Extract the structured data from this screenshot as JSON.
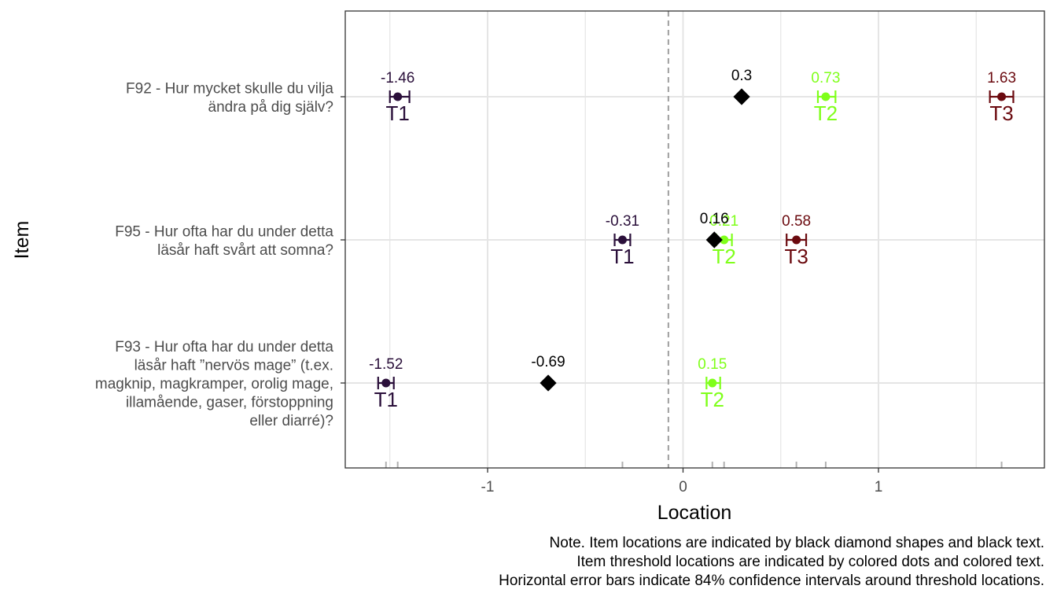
{
  "chart_data": {
    "type": "scatter",
    "xlabel": "Location",
    "ylabel": "Item",
    "xlim": [
      -1.74,
      1.85
    ],
    "x_ticks": [
      -1,
      0,
      1
    ],
    "x_tick_labels": [
      "-1",
      "0",
      "1"
    ],
    "reference_line_x": -0.075,
    "grid": true,
    "colors": {
      "item": "#000000",
      "T1": "#2A0F3A",
      "T2": "#7FFF1A",
      "T3": "#6B0A0F",
      "refline": "#9E9E9E",
      "grid": "#E5E5E5",
      "axis_text": "#4D4D4D"
    },
    "items": [
      {
        "label_lines": [
          "F92 - Hur mycket skulle du vilja",
          "ändra på dig själv?"
        ],
        "location": 0.3,
        "location_label": "0.3",
        "thresholds": [
          {
            "name": "T1",
            "value": -1.46,
            "label": "-1.46",
            "ci": [
              -1.5,
              -1.4
            ]
          },
          {
            "name": "T2",
            "value": 0.73,
            "label": "0.73",
            "ci": [
              0.69,
              0.78
            ]
          },
          {
            "name": "T3",
            "value": 1.63,
            "label": "1.63",
            "ci": [
              1.57,
              1.69
            ]
          }
        ]
      },
      {
        "label_lines": [
          "F95 - Hur ofta har du under detta",
          "läsår haft svårt att somna?"
        ],
        "location": 0.16,
        "location_label": "0.16",
        "thresholds": [
          {
            "name": "T1",
            "value": -0.31,
            "label": "-0.31",
            "ci": [
              -0.35,
              -0.27
            ]
          },
          {
            "name": "T2",
            "value": 0.21,
            "label": "0.21",
            "ci": [
              0.17,
              0.25
            ]
          },
          {
            "name": "T3",
            "value": 0.58,
            "label": "0.58",
            "ci": [
              0.53,
              0.63
            ]
          }
        ]
      },
      {
        "label_lines": [
          "F93 - Hur ofta har du under detta",
          "läsår haft ”nervös mage” (t.ex.",
          "magknip, magkramper, orolig mage,",
          "illamående, gaser, förstoppning",
          "eller diarré)?"
        ],
        "location": -0.69,
        "location_label": "-0.69",
        "thresholds": [
          {
            "name": "T1",
            "value": -1.52,
            "label": "-1.52",
            "ci": [
              -1.56,
              -1.48
            ]
          },
          {
            "name": "T2",
            "value": 0.15,
            "label": "0.15",
            "ci": [
              0.12,
              0.19
            ]
          }
        ]
      }
    ]
  },
  "note": {
    "lines": [
      "Note. Item locations are indicated by black diamond shapes and black text.",
      "Item threshold locations are indicated by colored dots and colored text.",
      "Horizontal error bars indicate 84% confidence intervals around threshold locations."
    ]
  }
}
